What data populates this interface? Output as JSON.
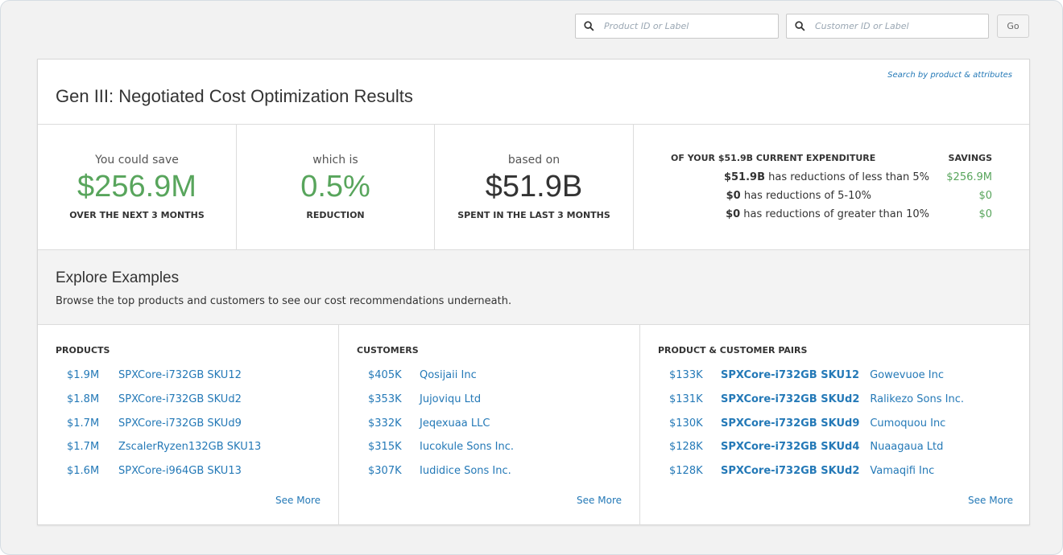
{
  "search": {
    "product_placeholder": "Product ID or Label",
    "customer_placeholder": "Customer ID or Label",
    "go_label": "Go"
  },
  "card": {
    "title": "Gen III: Negotiated Cost Optimization Results",
    "search_link": "Search by product & attributes"
  },
  "stats": [
    {
      "lead": "You could save",
      "value": "$256.9M",
      "caption": "OVER THE NEXT 3 MONTHS"
    },
    {
      "lead": "which is",
      "value": "0.5%",
      "caption": "REDUCTION"
    },
    {
      "lead": "based on",
      "value": "$51.9B",
      "caption": "SPENT IN THE LAST 3 MONTHS"
    }
  ],
  "breakdown": {
    "header": "OF YOUR $51.9B CURRENT EXPENDITURE",
    "savings_header": "SAVINGS",
    "rows": [
      {
        "amount": "$51.9B",
        "text": " has reductions of less than 5%",
        "savings": "$256.9M"
      },
      {
        "amount": "$0",
        "text": " has reductions of 5-10%",
        "savings": "$0"
      },
      {
        "amount": "$0",
        "text": " has reductions of greater than 10%",
        "savings": "$0"
      }
    ]
  },
  "explore": {
    "title": "Explore Examples",
    "subtitle": "Browse the top products and customers to see our cost recommendations underneath."
  },
  "products": {
    "header": "PRODUCTS",
    "see_more": "See More",
    "items": [
      {
        "amount": "$1.9M",
        "name": "SPXCore-i732GB SKU12"
      },
      {
        "amount": "$1.8M",
        "name": "SPXCore-i732GB SKUd2"
      },
      {
        "amount": "$1.7M",
        "name": "SPXCore-i732GB SKUd9"
      },
      {
        "amount": "$1.7M",
        "name": "ZscalerRyzen132GB SKU13"
      },
      {
        "amount": "$1.6M",
        "name": "SPXCore-i964GB SKU13"
      }
    ]
  },
  "customers": {
    "header": "CUSTOMERS",
    "see_more": "See More",
    "items": [
      {
        "amount": "$405K",
        "name": "Qosijaii Inc"
      },
      {
        "amount": "$353K",
        "name": "Jujoviqu Ltd"
      },
      {
        "amount": "$332K",
        "name": "Jeqexuaa LLC"
      },
      {
        "amount": "$315K",
        "name": "Iucokule Sons Inc."
      },
      {
        "amount": "$307K",
        "name": "Iudidice Sons Inc."
      }
    ]
  },
  "pairs": {
    "header": "PRODUCT & CUSTOMER PAIRS",
    "see_more": "See More",
    "items": [
      {
        "amount": "$133K",
        "product": "SPXCore-i732GB SKU12",
        "customer": "Gowevuoe Inc"
      },
      {
        "amount": "$131K",
        "product": "SPXCore-i732GB SKUd2",
        "customer": "Ralikezo Sons Inc."
      },
      {
        "amount": "$130K",
        "product": "SPXCore-i732GB SKUd9",
        "customer": "Cumoquou Inc"
      },
      {
        "amount": "$128K",
        "product": "SPXCore-i732GB SKUd4",
        "customer": "Nuaagaua Ltd"
      },
      {
        "amount": "$128K",
        "product": "SPXCore-i732GB SKUd2",
        "customer": "Vamaqifi Inc"
      }
    ]
  },
  "colors": {
    "accent": "#2479b7",
    "savings_green": "#58a55c"
  },
  "icons": {
    "search": "search-icon"
  }
}
